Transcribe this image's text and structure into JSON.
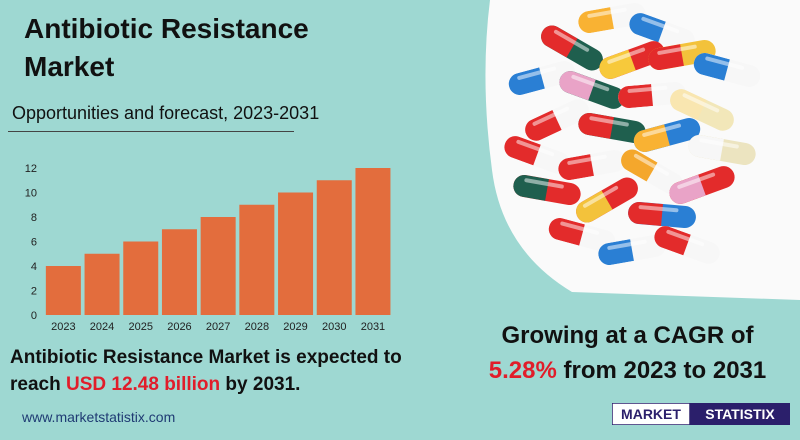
{
  "header": {
    "title": "Antibiotic Resistance Market",
    "subtitle": "Opportunities and forecast, 2023-2031"
  },
  "chart_data": {
    "type": "bar",
    "categories": [
      "2023",
      "2024",
      "2025",
      "2026",
      "2027",
      "2028",
      "2029",
      "2030",
      "2031"
    ],
    "values": [
      4,
      5,
      6,
      7,
      8,
      9,
      10,
      11,
      12
    ],
    "yticks": [
      "0",
      "2",
      "4",
      "6",
      "8",
      "10",
      "12"
    ],
    "ylim": [
      0,
      12
    ],
    "grid": false,
    "bar_color": "#e36d3d"
  },
  "footnote": {
    "part1": "Antibiotic Resistance Market is expected to reach ",
    "highlight": "USD 12.48 billion",
    "part2": " by 2031."
  },
  "cagr": {
    "line1": "Growing at a CAGR of",
    "highlight": "5.28%",
    "line2_rest": " from 2023 to 2031"
  },
  "website": "www.marketstatistix.com",
  "logo": {
    "word1": "MARKET",
    "word2": "STATISTIX"
  },
  "colors": {
    "background": "#9ed8d2",
    "accent_red": "#e11d2a",
    "logo_navy": "#2b1f6b"
  },
  "image": {
    "icon": "pills-capsules-photo"
  }
}
